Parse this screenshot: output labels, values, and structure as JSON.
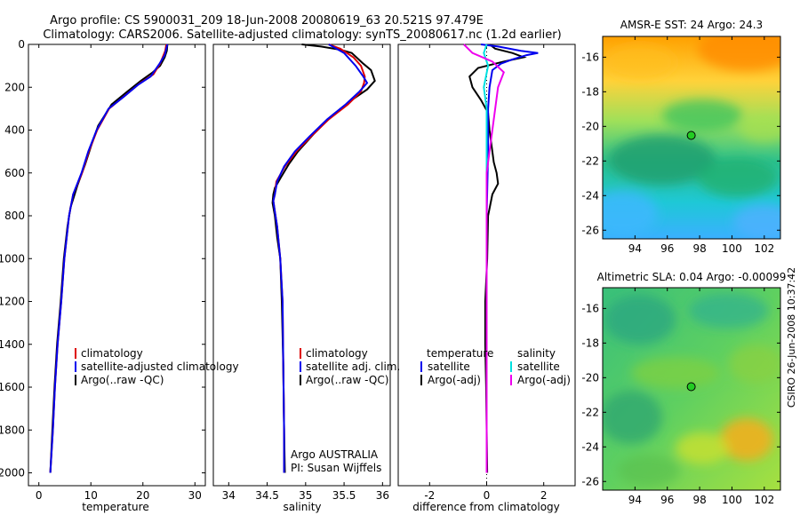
{
  "figure": {
    "title_line1": "Argo profile: CS 5900031_209 18-Jun-2008 20080619_63 20.521S 97.479E",
    "title_line2": "Climatology: CARS2006. Satellite-adjusted climatology: synTS_20080617.nc (1.2d earlier)",
    "side_stamp": "CSIRO 26-Jun-2008 10:37:42"
  },
  "colors": {
    "climatology": "#dd0000",
    "satellite": "#0000ee",
    "argo": "#000000",
    "satellite_salinity": "#00e0e0",
    "argo_salinity": "#ee00ee"
  },
  "chart_data": [
    {
      "type": "line",
      "title": "",
      "xlabel": "temperature",
      "ylabel": "",
      "xlim": [
        -2,
        32
      ],
      "ylim": [
        2060,
        0
      ],
      "y_reversed": true,
      "xticks": [
        0,
        10,
        20,
        30
      ],
      "yticks": [
        0,
        200,
        400,
        600,
        800,
        1000,
        1200,
        1400,
        1600,
        1800,
        2000
      ],
      "legend": [
        "climatology",
        "satellite-adjusted climatology",
        "Argo(..raw -QC)"
      ],
      "legend_position": "lower-right",
      "series": [
        {
          "name": "climatology",
          "color": "red",
          "points": [
            [
              24.5,
              0
            ],
            [
              24.3,
              30
            ],
            [
              23.3,
              90
            ],
            [
              22,
              140
            ],
            [
              19.5,
              180
            ],
            [
              16.5,
              240
            ],
            [
              13.5,
              300
            ],
            [
              11.2,
              400
            ],
            [
              9.6,
              500
            ],
            [
              8.3,
              600
            ],
            [
              6.6,
              700
            ],
            [
              5.8,
              800
            ],
            [
              4.9,
              1000
            ],
            [
              4.3,
              1200
            ],
            [
              3.6,
              1400
            ],
            [
              3.1,
              1600
            ],
            [
              2.7,
              1800
            ],
            [
              2.2,
              2000
            ]
          ]
        },
        {
          "name": "satellite-adjusted climatology",
          "color": "blue",
          "points": [
            [
              24.7,
              0
            ],
            [
              24.2,
              50
            ],
            [
              23.2,
              90
            ],
            [
              21.5,
              150
            ],
            [
              19,
              190
            ],
            [
              16.3,
              245
            ],
            [
              13.4,
              300
            ],
            [
              11.1,
              400
            ],
            [
              9.5,
              500
            ],
            [
              8.2,
              600
            ],
            [
              6.6,
              700
            ],
            [
              5.8,
              800
            ],
            [
              4.9,
              1000
            ],
            [
              4.3,
              1200
            ],
            [
              3.6,
              1400
            ],
            [
              3.1,
              1600
            ],
            [
              2.7,
              1800
            ],
            [
              2.2,
              2000
            ]
          ]
        },
        {
          "name": "Argo(..raw -QC)",
          "color": "black",
          "points": [
            [
              24.7,
              0
            ],
            [
              24.6,
              30
            ],
            [
              24.2,
              60
            ],
            [
              23.3,
              100
            ],
            [
              21.9,
              130
            ],
            [
              19.6,
              170
            ],
            [
              17,
              220
            ],
            [
              14,
              280
            ],
            [
              11.4,
              380
            ],
            [
              10.1,
              470
            ],
            [
              8.9,
              560
            ],
            [
              7.4,
              660
            ],
            [
              6.1,
              760
            ],
            [
              5.5,
              850
            ],
            [
              4.8,
              1000
            ],
            [
              4.2,
              1200
            ],
            [
              3.5,
              1400
            ],
            [
              3,
              1600
            ],
            [
              2.6,
              1800
            ],
            [
              2.2,
              2000
            ]
          ]
        }
      ]
    },
    {
      "type": "line",
      "title": "",
      "xlabel": "salinity",
      "ylabel": "",
      "xlim": [
        33.8,
        36.1
      ],
      "ylim": [
        2060,
        0
      ],
      "y_reversed": true,
      "xticks": [
        34,
        34.5,
        35,
        35.5,
        36
      ],
      "yticks": [],
      "legend": [
        "climatology",
        "satellite adj. clim.",
        "Argo(..raw -QC)"
      ],
      "legend_position": "lower-right",
      "annotation_line1": "Argo AUSTRALIA",
      "annotation_line2": "PI: Susan Wijffels",
      "series": [
        {
          "name": "climatology",
          "color": "red",
          "points": [
            [
              35.3,
              0
            ],
            [
              35.45,
              20
            ],
            [
              35.62,
              60
            ],
            [
              35.72,
              100
            ],
            [
              35.77,
              150
            ],
            [
              35.76,
              180
            ],
            [
              35.72,
              220
            ],
            [
              35.55,
              280
            ],
            [
              35.3,
              350
            ],
            [
              35.07,
              430
            ],
            [
              34.88,
              500
            ],
            [
              34.73,
              570
            ],
            [
              34.62,
              640
            ],
            [
              34.6,
              700
            ],
            [
              34.58,
              730
            ],
            [
              34.6,
              780
            ],
            [
              34.63,
              850
            ],
            [
              34.67,
              1000
            ],
            [
              34.7,
              1200
            ],
            [
              34.71,
              1500
            ],
            [
              34.72,
              1800
            ],
            [
              34.72,
              2000
            ]
          ]
        },
        {
          "name": "satellite adj. clim.",
          "color": "blue",
          "points": [
            [
              35.3,
              0
            ],
            [
              35.5,
              40
            ],
            [
              35.65,
              100
            ],
            [
              35.75,
              150
            ],
            [
              35.8,
              180
            ],
            [
              35.7,
              220
            ],
            [
              35.52,
              280
            ],
            [
              35.28,
              350
            ],
            [
              35.05,
              430
            ],
            [
              34.86,
              500
            ],
            [
              34.72,
              570
            ],
            [
              34.63,
              640
            ],
            [
              34.6,
              700
            ],
            [
              34.58,
              730
            ],
            [
              34.6,
              780
            ],
            [
              34.63,
              850
            ],
            [
              34.67,
              1000
            ],
            [
              34.7,
              1200
            ],
            [
              34.71,
              1500
            ],
            [
              34.72,
              1800
            ],
            [
              34.72,
              2000
            ]
          ]
        },
        {
          "name": "Argo(..raw -QC)",
          "color": "black",
          "points": [
            [
              34.95,
              0
            ],
            [
              35.2,
              10
            ],
            [
              35.45,
              25
            ],
            [
              35.6,
              40
            ],
            [
              35.75,
              90
            ],
            [
              35.85,
              120
            ],
            [
              35.9,
              170
            ],
            [
              35.8,
              210
            ],
            [
              35.6,
              260
            ],
            [
              35.35,
              330
            ],
            [
              35.1,
              420
            ],
            [
              34.9,
              500
            ],
            [
              34.78,
              560
            ],
            [
              34.68,
              620
            ],
            [
              34.6,
              670
            ],
            [
              34.58,
              700
            ],
            [
              34.57,
              740
            ],
            [
              34.6,
              800
            ],
            [
              34.63,
              900
            ],
            [
              34.67,
              1000
            ],
            [
              34.69,
              1200
            ],
            [
              34.71,
              1500
            ],
            [
              34.72,
              1800
            ],
            [
              34.73,
              2000
            ]
          ]
        }
      ]
    },
    {
      "type": "line",
      "title": "",
      "xlabel": "difference from climatology",
      "ylabel": "",
      "xlim": [
        -3.1,
        3.1
      ],
      "ylim": [
        2060,
        0
      ],
      "y_reversed": true,
      "xticks": [
        -2,
        0,
        2
      ],
      "yticks": [],
      "legend_left_title": "temperature",
      "legend_right_title": "salinity",
      "legend": [
        "satellite",
        "Argo(-adj)",
        "satellite",
        "Argo(-adj)"
      ],
      "legend_position": "lower-center",
      "series": [
        {
          "name": "temperature satellite",
          "color": "blue",
          "points": [
            [
              -0.2,
              0
            ],
            [
              0.4,
              10
            ],
            [
              1.2,
              30
            ],
            [
              1.8,
              40
            ],
            [
              1.4,
              50
            ],
            [
              0.9,
              70
            ],
            [
              0.5,
              90
            ],
            [
              0.2,
              120
            ],
            [
              0.1,
              200
            ],
            [
              0.05,
              300
            ],
            [
              0.05,
              500
            ],
            [
              0,
              800
            ],
            [
              0,
              1500
            ],
            [
              0,
              2000
            ]
          ]
        },
        {
          "name": "temperature Argo(-adj)",
          "color": "black",
          "points": [
            [
              0.1,
              0
            ],
            [
              0.3,
              20
            ],
            [
              0.9,
              40
            ],
            [
              1.3,
              60
            ],
            [
              0.6,
              80
            ],
            [
              -0.3,
              110
            ],
            [
              -0.6,
              150
            ],
            [
              -0.5,
              200
            ],
            [
              -0.2,
              260
            ],
            [
              0.05,
              320
            ],
            [
              0.1,
              400
            ],
            [
              0.2,
              500
            ],
            [
              0.25,
              550
            ],
            [
              0.35,
              600
            ],
            [
              0.4,
              650
            ],
            [
              0.2,
              700
            ],
            [
              0.05,
              800
            ],
            [
              0.02,
              1000
            ],
            [
              -0.05,
              1200
            ],
            [
              -0.05,
              1400
            ],
            [
              -0.02,
              1600
            ],
            [
              0,
              1800
            ],
            [
              0.02,
              2000
            ]
          ]
        },
        {
          "name": "salinity satellite",
          "color": "cyan",
          "points": [
            [
              0,
              0
            ],
            [
              -0.1,
              40
            ],
            [
              0.05,
              100
            ],
            [
              -0.1,
              200
            ],
            [
              0,
              300
            ],
            [
              0,
              500
            ],
            [
              0,
              800
            ],
            [
              0,
              1200
            ],
            [
              0,
              1600
            ],
            [
              0,
              2000
            ]
          ]
        },
        {
          "name": "salinity Argo(-adj)",
          "color": "magenta",
          "points": [
            [
              -0.8,
              0
            ],
            [
              -0.5,
              40
            ],
            [
              0.2,
              80
            ],
            [
              0.6,
              130
            ],
            [
              0.4,
              200
            ],
            [
              0.3,
              300
            ],
            [
              0.2,
              400
            ],
            [
              0.1,
              500
            ],
            [
              0,
              600
            ],
            [
              0,
              700
            ],
            [
              0,
              800
            ],
            [
              0,
              1000
            ],
            [
              0,
              1200
            ],
            [
              0,
              1600
            ],
            [
              0,
              2000
            ]
          ]
        }
      ]
    },
    {
      "type": "heatmap",
      "title": "AMSR-E SST: 24 Argo: 24.3",
      "xlabel": "",
      "ylabel": "",
      "xlim": [
        92,
        103
      ],
      "ylim": [
        -26.5,
        -14.8
      ],
      "xticks": [
        94,
        96,
        98,
        100,
        102
      ],
      "yticks": [
        -16,
        -18,
        -20,
        -22,
        -24,
        -26
      ],
      "marker": {
        "lon": 97.479,
        "lat": -20.521
      }
    },
    {
      "type": "heatmap",
      "title": "Altimetric SLA: 0.04 Argo: -0.00099",
      "xlabel": "",
      "ylabel": "",
      "xlim": [
        92,
        103
      ],
      "ylim": [
        -26.5,
        -14.8
      ],
      "xticks": [
        94,
        96,
        98,
        100,
        102
      ],
      "yticks": [
        -16,
        -18,
        -20,
        -22,
        -24,
        -26
      ],
      "marker": {
        "lon": 97.479,
        "lat": -20.521
      }
    }
  ]
}
